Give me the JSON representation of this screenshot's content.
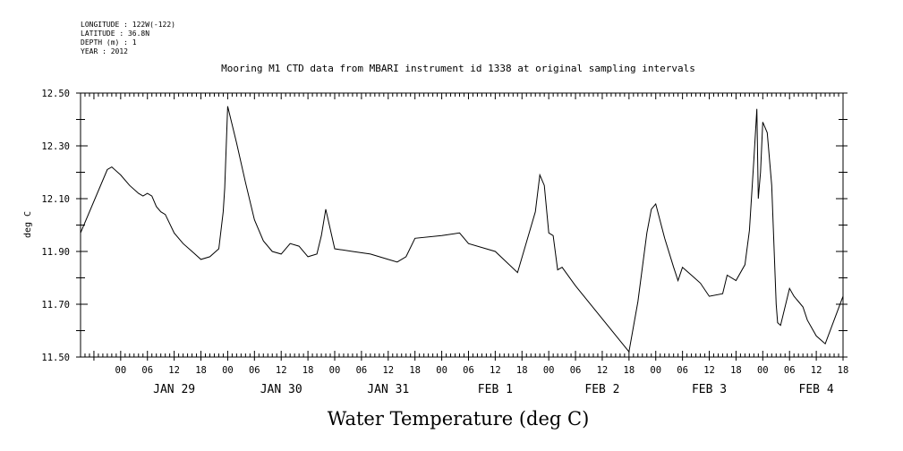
{
  "header": {
    "meta_lines": [
      "LONGITUDE : 122W(-122)",
      "LATITUDE : 36.8N",
      "DEPTH (m) : 1",
      "YEAR : 2012"
    ],
    "title": "Mooring M1 CTD data from MBARI instrument id 1338 at original sampling intervals"
  },
  "chart_data": {
    "type": "line",
    "title": "Mooring M1 CTD data from MBARI instrument id 1338 at original sampling intervals",
    "xlabel": "Water Temperature (deg C)",
    "ylabel": "deg C",
    "ylim": [
      11.5,
      12.5
    ],
    "xlim": [
      "2012-01-28T15:00",
      "2012-02-04T18:00"
    ],
    "y_ticks": [
      "11.50",
      "11.70",
      "11.90",
      "12.10",
      "12.30",
      "12.50"
    ],
    "y_tick_values": [
      11.5,
      11.7,
      11.9,
      12.1,
      12.3,
      12.5
    ],
    "hour_ticks": [
      "00",
      "06",
      "12",
      "18",
      "00",
      "06",
      "12",
      "18",
      "00",
      "06",
      "12",
      "18",
      "00",
      "06",
      "12",
      "18",
      "00",
      "06",
      "12",
      "18",
      "00",
      "06",
      "12",
      "18",
      "00",
      "06",
      "12",
      "18"
    ],
    "hour_tick_times": [
      "2012-01-29T00:00",
      "2012-01-29T06:00",
      "2012-01-29T12:00",
      "2012-01-29T18:00",
      "2012-01-30T00:00",
      "2012-01-30T06:00",
      "2012-01-30T12:00",
      "2012-01-30T18:00",
      "2012-01-31T00:00",
      "2012-01-31T06:00",
      "2012-01-31T12:00",
      "2012-01-31T18:00",
      "2012-02-01T00:00",
      "2012-02-01T06:00",
      "2012-02-01T12:00",
      "2012-02-01T18:00",
      "2012-02-02T00:00",
      "2012-02-02T06:00",
      "2012-02-02T12:00",
      "2012-02-02T18:00",
      "2012-02-03T00:00",
      "2012-02-03T06:00",
      "2012-02-03T12:00",
      "2012-02-03T18:00",
      "2012-02-04T00:00",
      "2012-02-04T06:00",
      "2012-02-04T12:00",
      "2012-02-04T18:00"
    ],
    "day_labels": [
      "JAN 29",
      "JAN 30",
      "JAN 31",
      "FEB  1",
      "FEB  2",
      "FEB  3",
      "FEB  4"
    ],
    "day_label_times": [
      "2012-01-29T12:00",
      "2012-01-30T12:00",
      "2012-01-31T12:00",
      "2012-02-01T12:00",
      "2012-02-02T12:00",
      "2012-02-03T12:00",
      "2012-02-04T12:00"
    ],
    "grid": false,
    "series": [
      {
        "x": [
          "2012-01-28T15:00",
          "2012-01-28T21:00",
          "2012-01-28T22:00",
          "2012-01-29T00:00",
          "2012-01-29T02:00",
          "2012-01-29T04:00",
          "2012-01-29T05:00",
          "2012-01-29T06:00",
          "2012-01-29T07:00",
          "2012-01-29T08:00",
          "2012-01-29T09:00",
          "2012-01-29T10:00",
          "2012-01-29T12:00",
          "2012-01-29T14:00",
          "2012-01-29T16:00",
          "2012-01-29T18:00",
          "2012-01-29T20:00",
          "2012-01-29T22:00",
          "2012-01-29T23:00",
          "2012-01-29T23:20",
          "2012-01-30T00:00",
          "2012-01-30T01:00",
          "2012-01-30T02:00",
          "2012-01-30T04:00",
          "2012-01-30T06:00",
          "2012-01-30T08:00",
          "2012-01-30T10:00",
          "2012-01-30T12:00",
          "2012-01-30T14:00",
          "2012-01-30T16:00",
          "2012-01-30T18:00",
          "2012-01-30T20:00",
          "2012-01-30T21:00",
          "2012-01-30T22:00",
          "2012-01-31T00:00",
          "2012-01-31T04:00",
          "2012-01-31T08:00",
          "2012-01-31T12:00",
          "2012-01-31T14:00",
          "2012-01-31T16:00",
          "2012-01-31T18:00",
          "2012-02-01T00:00",
          "2012-02-01T04:00",
          "2012-02-01T06:00",
          "2012-02-01T12:00",
          "2012-02-01T17:00",
          "2012-02-01T21:00",
          "2012-02-01T22:00",
          "2012-02-01T23:00",
          "2012-02-02T00:00",
          "2012-02-02T01:00",
          "2012-02-02T02:00",
          "2012-02-02T03:00",
          "2012-02-02T06:00",
          "2012-02-02T18:00",
          "2012-02-02T20:00",
          "2012-02-02T22:00",
          "2012-02-02T23:00",
          "2012-02-03T00:00",
          "2012-02-03T02:00",
          "2012-02-03T04:00",
          "2012-02-03T05:00",
          "2012-02-03T06:00",
          "2012-02-03T08:00",
          "2012-02-03T10:00",
          "2012-02-03T12:00",
          "2012-02-03T15:00",
          "2012-02-03T16:00",
          "2012-02-03T18:00",
          "2012-02-03T20:00",
          "2012-02-03T21:00",
          "2012-02-03T22:00",
          "2012-02-03T22:40",
          "2012-02-03T23:00",
          "2012-02-03T23:30",
          "2012-02-04T00:00",
          "2012-02-04T01:00",
          "2012-02-04T02:00",
          "2012-02-04T03:00",
          "2012-02-04T03:20",
          "2012-02-04T04:00",
          "2012-02-04T05:00",
          "2012-02-04T06:00",
          "2012-02-04T07:00",
          "2012-02-04T08:00",
          "2012-02-04T09:00",
          "2012-02-04T10:00",
          "2012-02-04T12:00",
          "2012-02-04T14:00",
          "2012-02-04T18:00"
        ],
        "y": [
          11.97,
          12.21,
          12.22,
          12.19,
          12.15,
          12.12,
          12.11,
          12.12,
          12.11,
          12.07,
          12.05,
          12.04,
          11.97,
          11.93,
          11.9,
          11.87,
          11.88,
          11.91,
          12.05,
          12.14,
          12.45,
          12.38,
          12.31,
          12.16,
          12.02,
          11.94,
          11.9,
          11.89,
          11.93,
          11.92,
          11.88,
          11.89,
          11.96,
          12.06,
          11.91,
          11.9,
          11.89,
          11.87,
          11.86,
          11.88,
          11.95,
          11.96,
          11.97,
          11.93,
          11.9,
          11.82,
          12.05,
          12.19,
          12.15,
          11.97,
          11.96,
          11.83,
          11.84,
          11.77,
          11.52,
          11.71,
          11.97,
          12.06,
          12.08,
          11.95,
          11.84,
          11.79,
          11.84,
          11.81,
          11.78,
          11.73,
          11.74,
          11.81,
          11.79,
          11.85,
          11.98,
          12.25,
          12.44,
          12.1,
          12.2,
          12.39,
          12.35,
          12.15,
          11.7,
          11.63,
          11.62,
          11.69,
          11.76,
          11.73,
          11.71,
          11.69,
          11.64,
          11.58,
          11.55,
          11.73
        ]
      }
    ]
  }
}
